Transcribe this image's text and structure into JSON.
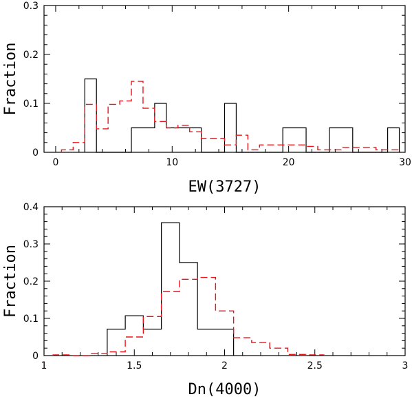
{
  "chart_data": [
    {
      "type": "histogram",
      "xlabel": "EW(3727)",
      "ylabel": "Fraction",
      "xlim": [
        -1,
        30
      ],
      "ylim": [
        0,
        0.3
      ],
      "xticks_major": [
        0,
        10,
        20,
        30
      ],
      "xticks_minor_step": 2,
      "yticks_major": [
        0,
        0.1,
        0.2,
        0.3
      ],
      "yticks_minor_step": 0.02,
      "ytick_labels": [
        "0",
        "0.1",
        "0.2",
        "0.3"
      ],
      "xtick_labels": [
        "0",
        "10",
        "20",
        "30"
      ],
      "series": [
        {
          "style": "solid-black",
          "edges": [
            2.5,
            3.5,
            4.5,
            5.5,
            6.5,
            7.5,
            8.5,
            9.5,
            10.5,
            11.5,
            12.5,
            13.5,
            14.5,
            15.5,
            16.5,
            17.5,
            18.5,
            19.5,
            20.5,
            21.5,
            22.5,
            23.5,
            24.5,
            25.5,
            26.5,
            27.5,
            28.5,
            29.5
          ],
          "values": [
            0.15,
            0,
            0,
            0,
            0.05,
            0.05,
            0.1,
            0.05,
            0.05,
            0.05,
            0,
            0,
            0.1,
            0,
            0,
            0,
            0,
            0.05,
            0.05,
            0,
            0,
            0.05,
            0.05,
            0,
            0,
            0,
            0.05
          ]
        },
        {
          "style": "dashed-red",
          "edges": [
            0.5,
            1.5,
            2.5,
            3.5,
            4.5,
            5.5,
            6.5,
            7.5,
            8.5,
            9.5,
            10.5,
            11.5,
            12.5,
            13.5,
            14.5,
            15.5,
            16.5,
            17.5,
            18.5,
            19.5,
            20.5,
            21.5,
            22.5,
            23.5,
            24.5,
            25.5,
            26.5,
            27.5,
            28.5,
            29.5
          ],
          "values": [
            0.005,
            0.02,
            0.098,
            0.048,
            0.098,
            0.105,
            0.145,
            0.09,
            0.063,
            0.05,
            0.055,
            0.042,
            0.028,
            0.028,
            0.015,
            0.035,
            0.005,
            0.015,
            0.015,
            0.015,
            0.015,
            0.012,
            0.005,
            0.005,
            0.01,
            0.01,
            0.01,
            0.005,
            0.005
          ]
        }
      ]
    },
    {
      "type": "histogram",
      "xlabel": "Dn(4000)",
      "ylabel": "Fraction",
      "xlim": [
        1,
        3
      ],
      "ylim": [
        0,
        0.4
      ],
      "xticks_major": [
        1,
        1.5,
        2,
        2.5,
        3
      ],
      "xticks_minor_step": 0.1,
      "yticks_major": [
        0,
        0.1,
        0.2,
        0.3,
        0.4
      ],
      "yticks_minor_step": 0.02,
      "ytick_labels": [
        "0",
        "0.1",
        "0.2",
        "0.3",
        "0.4"
      ],
      "xtick_labels": [
        "1",
        "1.5",
        "2",
        "2.5",
        "3"
      ],
      "series": [
        {
          "style": "solid-black",
          "edges": [
            1.35,
            1.45,
            1.55,
            1.65,
            1.75,
            1.85,
            1.95,
            2.05
          ],
          "values": [
            0.071,
            0.107,
            0.071,
            0.357,
            0.25,
            0.071,
            0.071
          ]
        },
        {
          "style": "dashed-red",
          "edges": [
            1.05,
            1.15,
            1.25,
            1.35,
            1.45,
            1.55,
            1.65,
            1.75,
            1.85,
            1.95,
            2.05,
            2.15,
            2.25,
            2.35,
            2.45,
            2.55
          ],
          "values": [
            0.002,
            0.0,
            0.005,
            0.01,
            0.05,
            0.105,
            0.172,
            0.205,
            0.21,
            0.12,
            0.048,
            0.035,
            0.02,
            0.003,
            0.002
          ]
        }
      ]
    }
  ]
}
